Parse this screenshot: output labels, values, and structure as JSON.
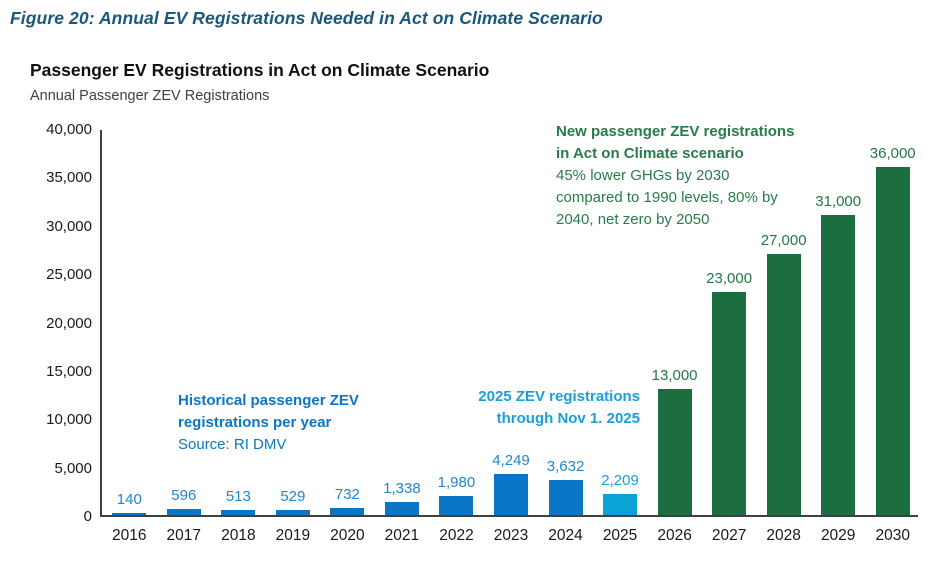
{
  "page": {
    "figure_title": "Figure 20: Annual EV Registrations Needed in Act on Climate Scenario"
  },
  "chart_data": {
    "type": "bar",
    "title": "Passenger EV Registrations in Act on Climate Scenario",
    "subtitle": "Annual Passenger ZEV Registrations",
    "categories": [
      "2016",
      "2017",
      "2018",
      "2019",
      "2020",
      "2021",
      "2022",
      "2023",
      "2024",
      "2025",
      "2026",
      "2027",
      "2028",
      "2029",
      "2030"
    ],
    "values": [
      140,
      596,
      513,
      529,
      732,
      1338,
      1980,
      4249,
      3632,
      2209,
      13000,
      23000,
      27000,
      31000,
      36000
    ],
    "value_labels": [
      "140",
      "596",
      "513",
      "529",
      "732",
      "1,338",
      "1,980",
      "4,249",
      "3,632",
      "2,209",
      "13,000",
      "23,000",
      "27,000",
      "31,000",
      "36,000"
    ],
    "groups": [
      "historical",
      "historical",
      "historical",
      "historical",
      "historical",
      "historical",
      "historical",
      "historical",
      "historical",
      "ytd_2025",
      "act_on_climate",
      "act_on_climate",
      "act_on_climate",
      "act_on_climate",
      "act_on_climate"
    ],
    "colors": {
      "historical": "#0b76c6",
      "ytd_2025": "#0ba2d8",
      "act_on_climate": "#1c6e41"
    },
    "label_colors": {
      "historical": "#1e87ce",
      "ytd_2025": "#1b9fd8",
      "act_on_climate": "#257747"
    },
    "axis_color": "#404040",
    "ylim": [
      0,
      40000
    ],
    "ytick_step": 5000,
    "yticks_top_to_bottom": [
      "40,000",
      "35,000",
      "30,000",
      "25,000",
      "20,000",
      "15,000",
      "10,000",
      "5,000",
      "0"
    ],
    "grid": false,
    "legend": "none",
    "annotations": {
      "projected": {
        "color": "#277c4b",
        "bold_lines": [
          "New passenger ZEV registrations",
          "in Act on Climate scenario"
        ],
        "body_lines": [
          "45% lower GHGs by 2030",
          "compared to 1990 levels, 80% by",
          "2040, net zero by 2050"
        ]
      },
      "historical": {
        "color": "#0b76c6",
        "bold_lines": [
          "Historical passenger ZEV",
          "registrations per year"
        ],
        "body_lines": [
          "Source: RI DMV"
        ]
      },
      "ytd_2025": {
        "color": "#1b9fd8",
        "bold_lines": [
          "2025 ZEV registrations",
          "through Nov 1. 2025"
        ],
        "body_lines": []
      }
    }
  }
}
